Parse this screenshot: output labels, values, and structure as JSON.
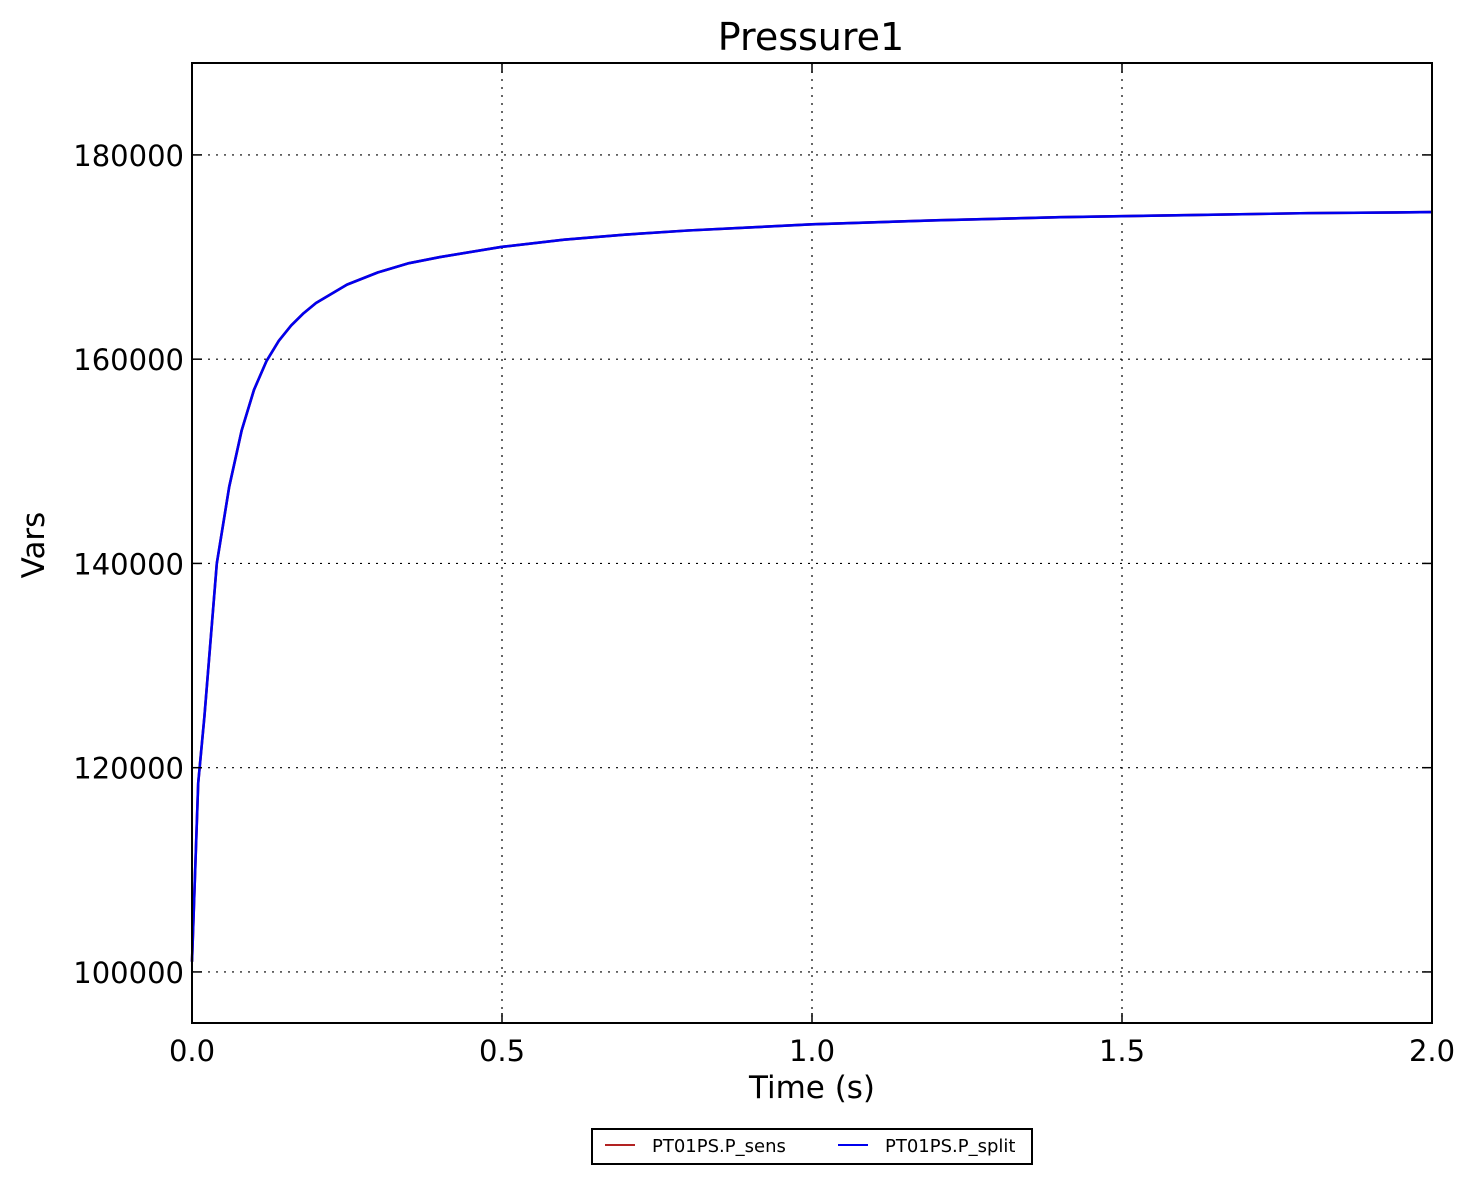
{
  "chart_data": {
    "type": "line",
    "title": "Pressure1",
    "xlabel": "Time (s)",
    "ylabel": "Vars",
    "xlim": [
      0.0,
      2.0
    ],
    "ylim": [
      95000,
      189000
    ],
    "xticks": [
      0.0,
      0.5,
      1.0,
      1.5,
      2.0
    ],
    "xtick_labels": [
      "0.0",
      "0.5",
      "1.0",
      "1.5",
      "2.0"
    ],
    "yticks": [
      100000,
      120000,
      140000,
      160000,
      180000
    ],
    "ytick_labels": [
      "100000",
      "120000",
      "140000",
      "160000",
      "180000"
    ],
    "grid": true,
    "legend_position": "bottom-center",
    "series": [
      {
        "name": "PT01PS.P_sens",
        "color": "#b22222",
        "x": [
          0.0,
          0.01,
          0.02,
          0.04,
          0.06,
          0.08,
          0.1,
          0.12,
          0.14,
          0.16,
          0.18,
          0.2,
          0.25,
          0.3,
          0.35,
          0.4,
          0.5,
          0.6,
          0.7,
          0.8,
          0.9,
          1.0,
          1.2,
          1.4,
          1.6,
          1.8,
          2.0
        ],
        "y": [
          101000,
          118500,
          125000,
          140000,
          147500,
          153000,
          157000,
          159800,
          161800,
          163300,
          164500,
          165500,
          167300,
          168500,
          169400,
          170000,
          171000,
          171700,
          172200,
          172600,
          172900,
          173200,
          173600,
          173900,
          174100,
          174300,
          174400
        ]
      },
      {
        "name": "PT01PS.P_split",
        "color": "#0000ee",
        "x": [
          0.0,
          0.01,
          0.02,
          0.04,
          0.06,
          0.08,
          0.1,
          0.12,
          0.14,
          0.16,
          0.18,
          0.2,
          0.25,
          0.3,
          0.35,
          0.4,
          0.5,
          0.6,
          0.7,
          0.8,
          0.9,
          1.0,
          1.2,
          1.4,
          1.6,
          1.8,
          2.0
        ],
        "y": [
          101000,
          118500,
          125000,
          140000,
          147500,
          153000,
          157000,
          159800,
          161800,
          163300,
          164500,
          165500,
          167300,
          168500,
          169400,
          170000,
          171000,
          171700,
          172200,
          172600,
          172900,
          173200,
          173600,
          173900,
          174100,
          174300,
          174400
        ]
      }
    ]
  }
}
